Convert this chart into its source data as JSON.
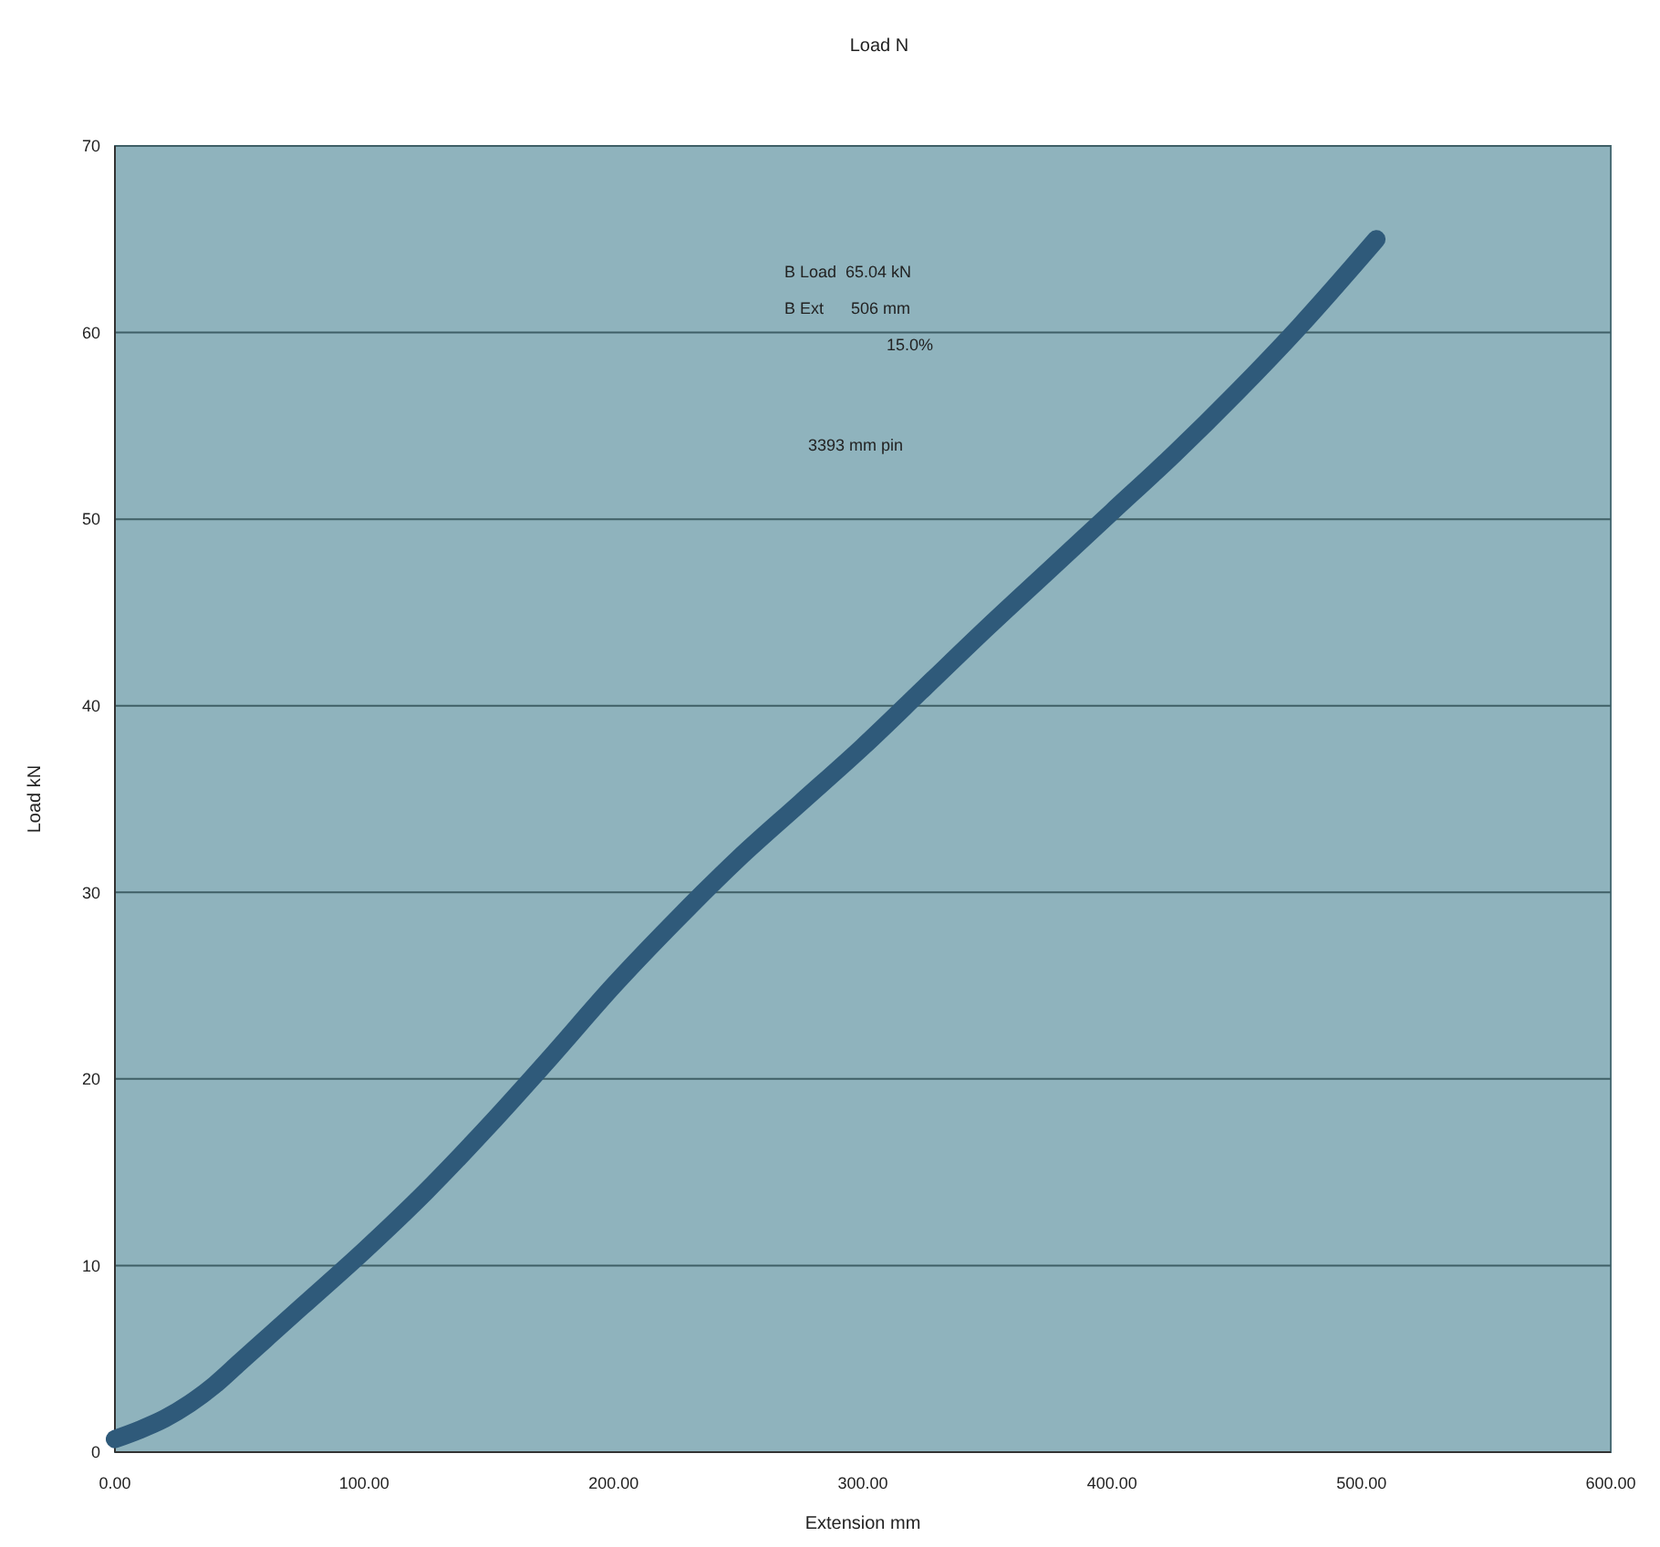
{
  "chart_data": {
    "type": "line",
    "title": "Load N",
    "xlabel": "Extension mm",
    "ylabel": "Load  kN",
    "x": [
      0,
      10,
      20,
      30,
      40,
      50,
      60,
      75,
      100,
      125,
      150,
      175,
      200,
      225,
      250,
      275,
      300,
      325,
      350,
      375,
      400,
      425,
      450,
      475,
      506
    ],
    "series": [
      {
        "color": "#2f5a7a",
        "values": [
          0.7,
          1.2,
          1.8,
          2.6,
          3.6,
          4.8,
          6,
          7.8,
          10.8,
          14,
          17.5,
          21.2,
          25,
          28.5,
          31.8,
          34.8,
          37.8,
          41,
          44.2,
          47.3,
          50.4,
          53.5,
          56.8,
          60.3,
          65
        ]
      }
    ],
    "xlim": [
      0,
      600
    ],
    "xticks": [
      {
        "value": 0,
        "label": "0.00"
      },
      {
        "value": 100,
        "label": "100.00"
      },
      {
        "value": 200,
        "label": "200.00"
      },
      {
        "value": 300,
        "label": "300.00"
      },
      {
        "value": 400,
        "label": "400.00"
      },
      {
        "value": 500,
        "label": "500.00"
      },
      {
        "value": 600,
        "label": "600.00"
      }
    ],
    "ylim": [
      0,
      70
    ],
    "yticks": [
      0,
      10,
      20,
      30,
      40,
      50,
      60,
      70
    ],
    "grid": "y",
    "line_style": "solid",
    "annotations": [
      "B Load  65.04 kN",
      "B Ext      506 mm",
      "15.0%",
      "3393 mm pin"
    ]
  }
}
